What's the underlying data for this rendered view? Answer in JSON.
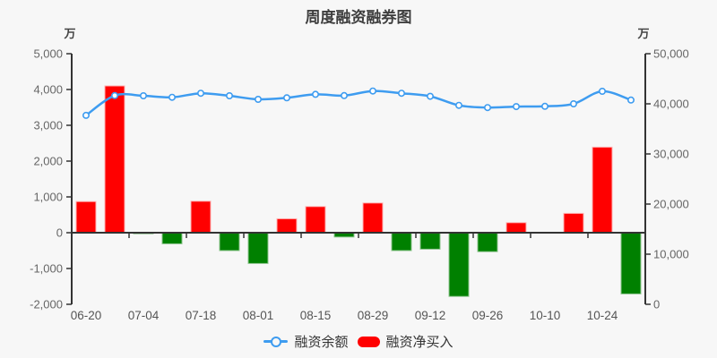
{
  "title": "周度融资融券图",
  "colors": {
    "background": "#f7f7f7",
    "bar_positive": "#ff0000",
    "bar_positive_edge": "#ffb3b3",
    "bar_negative": "#008000",
    "bar_negative_edge": "#8cc48c",
    "line": "#3e9cf0",
    "marker_fill": "#ffffff",
    "axis": "#333333",
    "tick_label": "#666666",
    "x_label": "#555555",
    "unit_label": "#444444",
    "title": "#3f3f3f",
    "legend_text": "#333333"
  },
  "left_axis": {
    "unit": "万",
    "min": -2000,
    "max": 5000,
    "tick_step": 1000,
    "tick_labels": [
      "5,000",
      "4,000",
      "3,000",
      "2,000",
      "1,000",
      "0",
      "-1,000",
      "-2,000"
    ]
  },
  "right_axis": {
    "unit": "万",
    "min": 0,
    "max": 50000,
    "tick_step": 10000,
    "tick_labels": [
      "50,000",
      "40,000",
      "30,000",
      "20,000",
      "10,000",
      "0"
    ]
  },
  "legend": [
    {
      "label": "融资余额",
      "type": "line"
    },
    {
      "label": "融资净买入",
      "type": "bar"
    }
  ],
  "chart_data": {
    "type": "bar+line",
    "n_points": 20,
    "x_tick_labels": [
      "06-20",
      "07-04",
      "07-18",
      "08-01",
      "08-15",
      "08-29",
      "09-12",
      "09-26",
      "10-10",
      "10-24"
    ],
    "x_label_every": 2,
    "series": [
      {
        "name": "融资余额",
        "type": "line",
        "axis": "right",
        "smooth": true,
        "values": [
          37700,
          41650,
          41600,
          41300,
          42100,
          41600,
          40900,
          41200,
          41900,
          41650,
          42550,
          42100,
          41500,
          39700,
          39250,
          39450,
          39500,
          40000,
          42500,
          40750
        ]
      },
      {
        "name": "融资净买入",
        "type": "bar",
        "axis": "left",
        "values": [
          870,
          4100,
          -30,
          -310,
          880,
          -500,
          -860,
          390,
          730,
          -120,
          830,
          -500,
          -460,
          -1780,
          -530,
          280,
          0,
          540,
          2390,
          -1710
        ]
      }
    ]
  }
}
